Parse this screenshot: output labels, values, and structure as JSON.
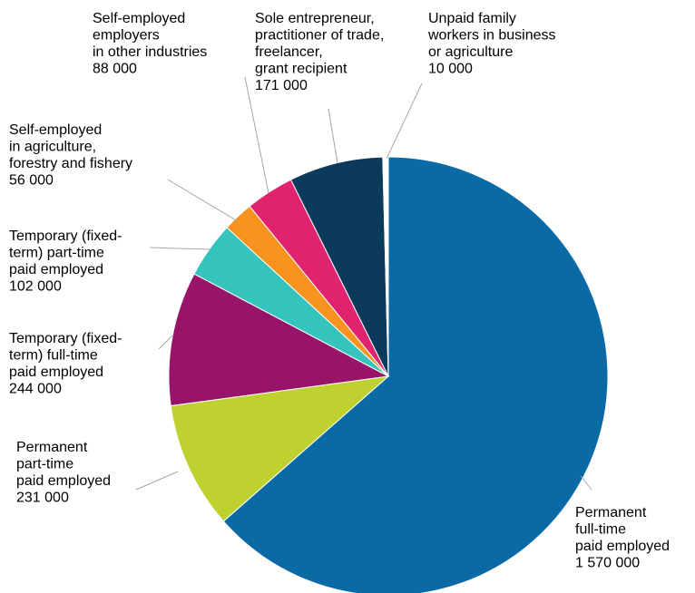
{
  "chart_data": {
    "type": "pie",
    "colors": {
      "permanent_full_time": "#0a6aa6",
      "permanent_part_time": "#bed12f",
      "temporary_full_time": "#98146b",
      "temporary_part_time": "#35c3bd",
      "self_employed_agriculture": "#f7931e",
      "self_employed_employers": "#e0236f",
      "sole_entrepreneur": "#0b3a5a",
      "unpaid_family": "#ffffff"
    },
    "slices": [
      {
        "key": "permanent_full_time",
        "lines": [
          "Permanent",
          "full-time",
          "paid employed"
        ],
        "value_text": "1 570 000",
        "value": 1570000
      },
      {
        "key": "permanent_part_time",
        "lines": [
          "Permanent",
          "part-time",
          "paid employed"
        ],
        "value_text": "231 000",
        "value": 231000
      },
      {
        "key": "temporary_full_time",
        "lines": [
          "Temporary (fixed-",
          "term) full-time",
          "paid employed"
        ],
        "value_text": "244 000",
        "value": 244000
      },
      {
        "key": "temporary_part_time",
        "lines": [
          "Temporary (fixed-",
          "term) part-time",
          "paid employed"
        ],
        "value_text": "102 000",
        "value": 102000
      },
      {
        "key": "self_employed_agriculture",
        "lines": [
          "Self-employed",
          "in agriculture,",
          "forestry and fishery"
        ],
        "value_text": "56 000",
        "value": 56000
      },
      {
        "key": "self_employed_employers",
        "lines": [
          "Self-employed",
          "employers",
          "in other industries"
        ],
        "value_text": "88 000",
        "value": 88000
      },
      {
        "key": "sole_entrepreneur",
        "lines": [
          "Sole entrepreneur,",
          "practitioner of trade,",
          "freelancer,",
          "grant recipient"
        ],
        "value_text": "171 000",
        "value": 171000
      },
      {
        "key": "unpaid_family",
        "lines": [
          "Unpaid family",
          "workers in business",
          "or agriculture"
        ],
        "value_text": "10 000",
        "value": 10000
      }
    ]
  }
}
